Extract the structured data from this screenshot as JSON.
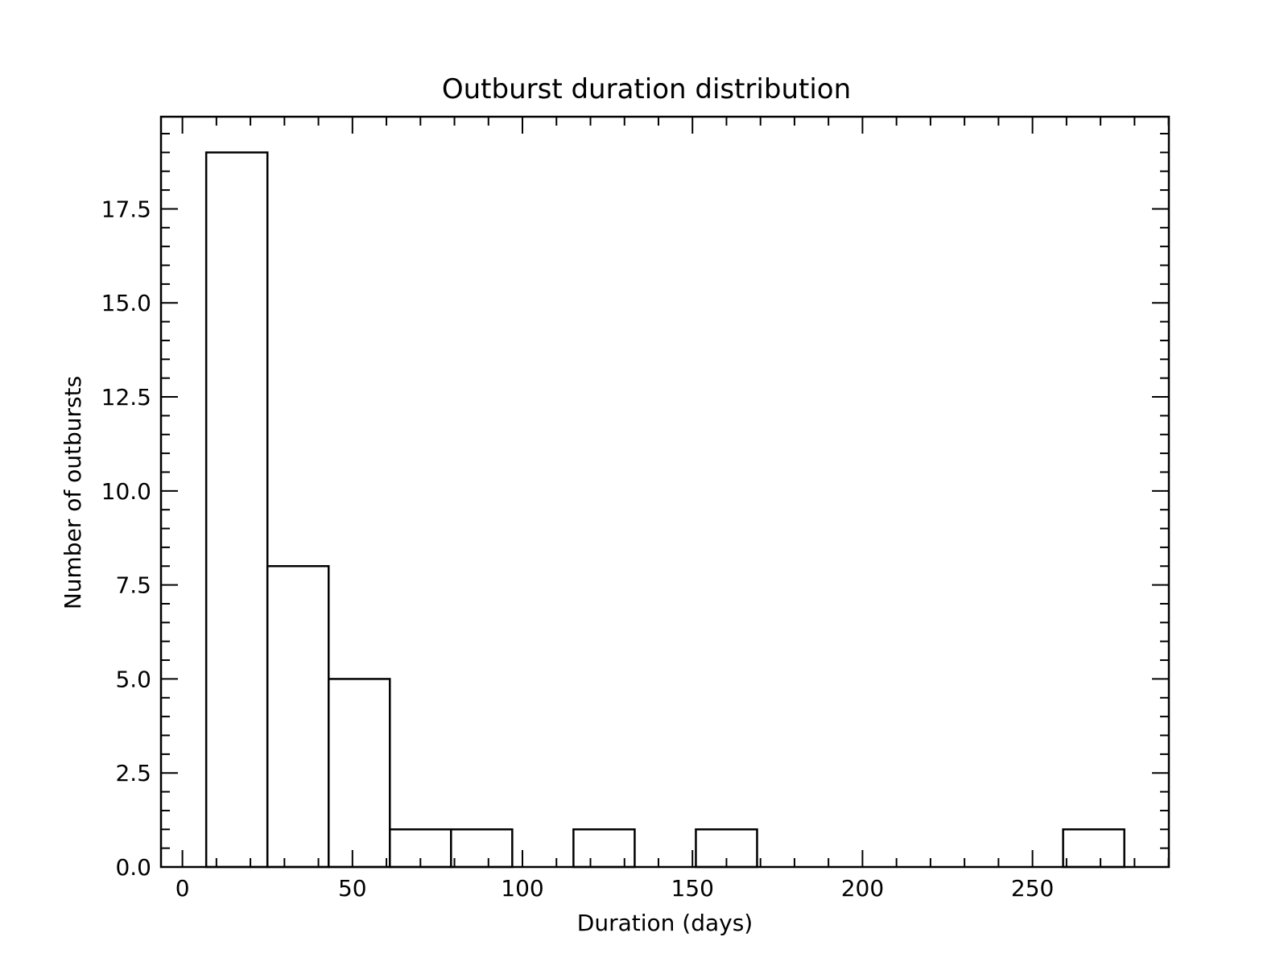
{
  "chart_data": {
    "type": "bar",
    "title": "Outburst duration distribution",
    "xlabel": "Duration (days)",
    "ylabel": "Number of outbursts",
    "xlim": [
      -6.3,
      290.1
    ],
    "ylim": [
      0,
      19.95
    ],
    "grid": false,
    "legend": "none",
    "x_major_ticks": [
      0,
      50,
      100,
      150,
      200,
      250
    ],
    "x_tick_labels": [
      "0",
      "50",
      "100",
      "150",
      "200",
      "250"
    ],
    "x_minor_step": 10,
    "y_major_ticks": [
      0,
      2.5,
      5,
      7.5,
      10,
      12.5,
      15,
      17.5
    ],
    "y_tick_labels": [
      "0.0",
      "2.5",
      "5.0",
      "7.5",
      "10.0",
      "12.5",
      "15.0",
      "17.5"
    ],
    "y_minor_step": 0.5,
    "bin_edges": [
      7.0,
      25.0,
      43.0,
      61.0,
      79.0,
      97.0,
      115.0,
      133.0,
      151.0,
      169.0,
      187.0,
      205.0,
      223.0,
      241.0,
      259.0,
      277.0
    ],
    "values": [
      19,
      8,
      5,
      1,
      1,
      0,
      1,
      0,
      1,
      0,
      0,
      0,
      0,
      0,
      1
    ],
    "bar_fill": "#ffffff",
    "bar_edge": "#000000"
  }
}
